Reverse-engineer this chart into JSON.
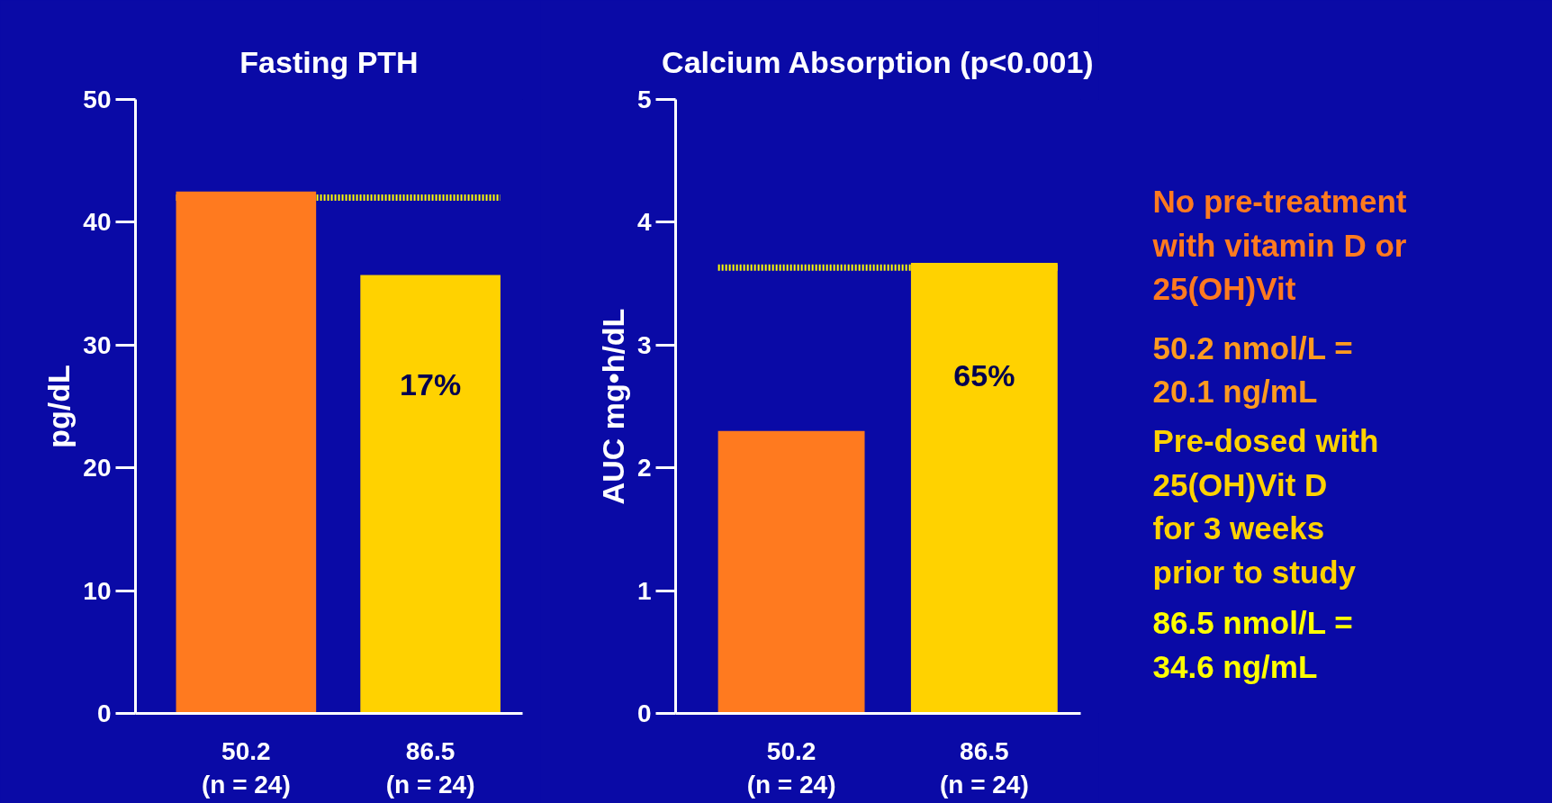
{
  "chart_data": [
    {
      "type": "bar",
      "title": "Fasting PTH",
      "ylabel": "pg/dL",
      "categories": [
        "50.2\n(n = 24)",
        "86.5\n(n = 24)"
      ],
      "values": [
        42.5,
        35.7
      ],
      "colors": [
        "#ff7a1f",
        "#ffd200"
      ],
      "ylim": [
        0,
        50
      ],
      "yticks": [
        0,
        10,
        20,
        30,
        40,
        50
      ],
      "grid": false,
      "ref_lines": [
        {
          "axis": "y",
          "value": 42,
          "color": "#ffff00",
          "line_style": "dotted"
        }
      ],
      "annotations": [
        "17%"
      ]
    },
    {
      "type": "bar",
      "title": "Calcium Absorption (p<0.001)",
      "ylabel": "AUC mg•h/dL",
      "categories": [
        "50.2\n(n = 24)",
        "86.5\n(n = 24)"
      ],
      "values": [
        2.3,
        3.67
      ],
      "colors": [
        "#ff7a1f",
        "#ffd200"
      ],
      "ylim": [
        0,
        5
      ],
      "yticks": [
        0,
        1,
        2,
        3,
        4,
        5
      ],
      "grid": false,
      "ref_lines": [
        {
          "axis": "y",
          "value": 3.63,
          "color": "#ffff00",
          "line_style": "dotted"
        }
      ],
      "annotations": [
        "65%"
      ]
    },
    {
      "type": "other",
      "colors": [
        "#ff7a1f",
        "#ff9a1f",
        "#ffd200",
        "#ffff00"
      ],
      "annotations": [
        "No pre-treatment\nwith vitamin D or\n25(OH)Vit",
        "50.2 nmol/L =\n20.1 ng/mL",
        "Pre-dosed with\n25(OH)Vit D\nfor 3 weeks\nprior to study",
        "86.5 nmol/L =\n34.6 ng/mL"
      ]
    }
  ]
}
